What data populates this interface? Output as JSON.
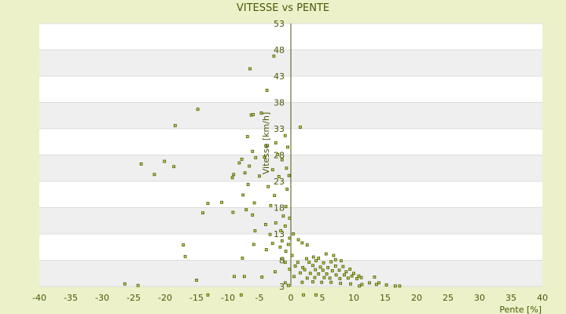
{
  "chart_data": {
    "type": "scatter",
    "title": "VITESSE vs PENTE",
    "xlabel": "Pente [%]",
    "ylabel": "Vitesse [km/h]",
    "xlim": [
      -40,
      40
    ],
    "ylim": [
      3,
      53
    ],
    "xticks": [
      -40,
      -35,
      -30,
      -25,
      -20,
      -15,
      -10,
      -5,
      0,
      5,
      10,
      15,
      20,
      25,
      30,
      35,
      40
    ],
    "yticks": [
      3,
      8,
      13,
      18,
      23,
      28,
      33,
      38,
      43,
      48,
      53
    ],
    "grid": "horizontal alternating bands",
    "legend": "none",
    "colors": {
      "background": "#ecf1c9",
      "plot_band_light": "#ffffff",
      "plot_band_dark": "#efefef",
      "point_fill": "#c8d24a",
      "point_stroke": "#4a5a08",
      "text": "#4a5a08"
    },
    "points": [
      [
        -6.5,
        44.4
      ],
      [
        -2.7,
        46.8
      ],
      [
        -3.8,
        40.3
      ],
      [
        -14.8,
        36.7
      ],
      [
        -6.3,
        35.6
      ],
      [
        -6.0,
        35.7
      ],
      [
        -4.7,
        36.0
      ],
      [
        -18.4,
        33.6
      ],
      [
        1.5,
        33.3
      ],
      [
        -6.9,
        31.5
      ],
      [
        -2.4,
        30.3
      ],
      [
        -0.9,
        31.7
      ],
      [
        -3.8,
        29.8
      ],
      [
        -6.1,
        28.7
      ],
      [
        -2.1,
        28.1
      ],
      [
        -0.5,
        29.5
      ],
      [
        -5.6,
        27.5
      ],
      [
        -7.8,
        27.2
      ],
      [
        -4.2,
        27.6
      ],
      [
        -1.4,
        27.1
      ],
      [
        -20.1,
        26.8
      ],
      [
        -23.8,
        26.3
      ],
      [
        -18.6,
        25.8
      ],
      [
        -8.2,
        26.5
      ],
      [
        -6.6,
        25.9
      ],
      [
        -2.9,
        25.2
      ],
      [
        -0.7,
        25.5
      ],
      [
        -9.1,
        24.3
      ],
      [
        -21.7,
        24.3
      ],
      [
        -7.3,
        24.6
      ],
      [
        -5.0,
        24.0
      ],
      [
        -1.9,
        23.9
      ],
      [
        -0.3,
        24.1
      ],
      [
        -9.3,
        23.7
      ],
      [
        -6.8,
        22.4
      ],
      [
        -3.6,
        22.0
      ],
      [
        -0.6,
        21.5
      ],
      [
        -7.6,
        20.4
      ],
      [
        -2.6,
        20.3
      ],
      [
        -11.0,
        19.0
      ],
      [
        -13.2,
        18.8
      ],
      [
        -5.8,
        18.9
      ],
      [
        -3.2,
        18.4
      ],
      [
        -0.8,
        18.2
      ],
      [
        -7.1,
        17.6
      ],
      [
        -9.2,
        17.1
      ],
      [
        -14.0,
        17.0
      ],
      [
        -6.1,
        16.6
      ],
      [
        -1.2,
        16.4
      ],
      [
        -0.2,
        16.0
      ],
      [
        -2.4,
        15.1
      ],
      [
        -4.0,
        14.8
      ],
      [
        -1.6,
        13.6
      ],
      [
        -0.9,
        14.5
      ],
      [
        -5.7,
        13.6
      ],
      [
        -3.3,
        12.9
      ],
      [
        -0.2,
        12.2
      ],
      [
        0.4,
        13.0
      ],
      [
        -1.4,
        11.7
      ],
      [
        -2.9,
        11.2
      ],
      [
        -17.1,
        10.9
      ],
      [
        -5.9,
        11.0
      ],
      [
        -0.4,
        11.0
      ],
      [
        1.2,
        11.9
      ],
      [
        1.8,
        11.3
      ],
      [
        2.6,
        10.9
      ],
      [
        -1.7,
        10.5
      ],
      [
        -3.9,
        10.0
      ],
      [
        -0.8,
        9.7
      ],
      [
        -16.8,
        8.7
      ],
      [
        -7.7,
        8.4
      ],
      [
        -1.3,
        8.3
      ],
      [
        0.2,
        8.9
      ],
      [
        2.5,
        8.3
      ],
      [
        3.6,
        8.6
      ],
      [
        4.4,
        8.4
      ],
      [
        5.6,
        9.2
      ],
      [
        6.8,
        8.9
      ],
      [
        7.1,
        8.1
      ],
      [
        -0.9,
        7.6
      ],
      [
        1.1,
        7.6
      ],
      [
        2.9,
        7.6
      ],
      [
        4.0,
        7.9
      ],
      [
        5.2,
        7.5
      ],
      [
        6.4,
        7.7
      ],
      [
        8.0,
        7.9
      ],
      [
        0.7,
        6.9
      ],
      [
        1.9,
        6.6
      ],
      [
        3.5,
        7.0
      ],
      [
        4.7,
        6.7
      ],
      [
        5.9,
        6.6
      ],
      [
        7.1,
        6.9
      ],
      [
        8.3,
        6.8
      ],
      [
        9.4,
        6.3
      ],
      [
        -0.2,
        6.3
      ],
      [
        2.2,
        6.2
      ],
      [
        3.9,
        6.2
      ],
      [
        5.1,
        6.1
      ],
      [
        6.6,
        6.0
      ],
      [
        7.7,
        6.1
      ],
      [
        8.8,
        5.8
      ],
      [
        10.0,
        5.5
      ],
      [
        -2.5,
        5.8
      ],
      [
        1.5,
        5.6
      ],
      [
        3.1,
        5.5
      ],
      [
        4.4,
        5.4
      ],
      [
        5.7,
        5.4
      ],
      [
        7.2,
        5.2
      ],
      [
        8.5,
        5.2
      ],
      [
        9.7,
        5.0
      ],
      [
        10.8,
        5.0
      ],
      [
        -9.0,
        4.9
      ],
      [
        -7.4,
        4.9
      ],
      [
        -4.6,
        4.8
      ],
      [
        0.5,
        4.9
      ],
      [
        2.6,
        4.6
      ],
      [
        3.8,
        4.7
      ],
      [
        5.3,
        4.7
      ],
      [
        6.2,
        4.6
      ],
      [
        7.8,
        4.5
      ],
      [
        9.1,
        4.6
      ],
      [
        10.5,
        4.5
      ],
      [
        11.2,
        4.7
      ],
      [
        13.3,
        4.8
      ],
      [
        -15.0,
        4.2
      ],
      [
        -26.4,
        3.5
      ],
      [
        -24.3,
        3.2
      ],
      [
        -0.9,
        3.7
      ],
      [
        1.8,
        3.8
      ],
      [
        3.5,
        3.9
      ],
      [
        4.9,
        3.8
      ],
      [
        6.4,
        3.8
      ],
      [
        7.9,
        3.6
      ],
      [
        9.5,
        3.5
      ],
      [
        11.3,
        3.4
      ],
      [
        12.5,
        3.7
      ],
      [
        14.0,
        3.7
      ],
      [
        13.6,
        3.4
      ],
      [
        15.2,
        3.3
      ],
      [
        16.6,
        3.1
      ],
      [
        17.3,
        3.1
      ],
      [
        -0.4,
        3.2
      ],
      [
        10.9,
        3.1
      ],
      [
        -7.9,
        1.4
      ],
      [
        -13.2,
        1.4
      ],
      [
        2.0,
        1.4
      ],
      [
        4.0,
        1.4
      ]
    ]
  }
}
